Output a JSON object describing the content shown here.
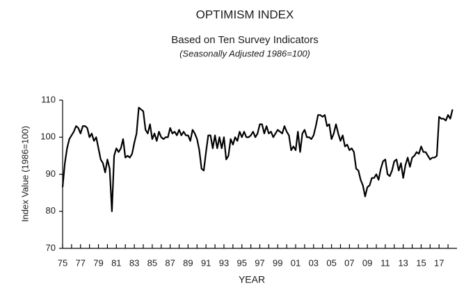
{
  "chart_data": {
    "type": "line",
    "title": "OPTIMISM INDEX",
    "subtitle": "Based on Ten Survey Indicators",
    "note": "(Seasonally Adjusted 1986=100)",
    "y_label": "Index Value (1986=100)",
    "x_label": "YEAR",
    "color": "#000000",
    "xlim": [
      1975,
      2019
    ],
    "ylim": [
      70,
      110
    ],
    "yticks": [
      70,
      80,
      90,
      100,
      110
    ],
    "xticks": [
      {
        "value": 1975,
        "label": "75"
      },
      {
        "value": 1977,
        "label": "77"
      },
      {
        "value": 1979,
        "label": "79"
      },
      {
        "value": 1981,
        "label": "81"
      },
      {
        "value": 1983,
        "label": "83"
      },
      {
        "value": 1985,
        "label": "85"
      },
      {
        "value": 1987,
        "label": "87"
      },
      {
        "value": 1989,
        "label": "89"
      },
      {
        "value": 1991,
        "label": "91"
      },
      {
        "value": 1993,
        "label": "93"
      },
      {
        "value": 1995,
        "label": "95"
      },
      {
        "value": 1997,
        "label": "97"
      },
      {
        "value": 1999,
        "label": "99"
      },
      {
        "value": 2001,
        "label": "01"
      },
      {
        "value": 2003,
        "label": "03"
      },
      {
        "value": 2005,
        "label": "05"
      },
      {
        "value": 2007,
        "label": "07"
      },
      {
        "value": 2009,
        "label": "09"
      },
      {
        "value": 2011,
        "label": "11"
      },
      {
        "value": 2013,
        "label": "13"
      },
      {
        "value": 2015,
        "label": "15"
      },
      {
        "value": 2017,
        "label": "17"
      }
    ],
    "xminorticks": [
      1976,
      1978,
      1980,
      1982,
      1984,
      1986,
      1988,
      1990,
      1992,
      1994,
      1996,
      1998,
      2000,
      2002,
      2004,
      2006,
      2008,
      2010,
      2012,
      2014,
      2016,
      2018
    ],
    "x": [
      1975,
      1975.25,
      1975.5,
      1975.75,
      1976,
      1976.25,
      1976.5,
      1976.75,
      1977,
      1977.25,
      1977.5,
      1977.75,
      1978,
      1978.25,
      1978.5,
      1978.75,
      1979,
      1979.25,
      1979.5,
      1979.75,
      1980,
      1980.25,
      1980.5,
      1980.75,
      1981,
      1981.25,
      1981.5,
      1981.75,
      1982,
      1982.25,
      1982.5,
      1982.75,
      1983,
      1983.25,
      1983.5,
      1983.75,
      1984,
      1984.25,
      1984.5,
      1984.75,
      1985,
      1985.25,
      1985.5,
      1985.75,
      1986,
      1986.25,
      1986.5,
      1986.75,
      1987,
      1987.25,
      1987.5,
      1987.75,
      1988,
      1988.25,
      1988.5,
      1988.75,
      1989,
      1989.25,
      1989.5,
      1989.75,
      1990,
      1990.25,
      1990.5,
      1990.75,
      1991,
      1991.25,
      1991.5,
      1991.75,
      1992,
      1992.25,
      1992.5,
      1992.75,
      1993,
      1993.25,
      1993.5,
      1993.75,
      1994,
      1994.25,
      1994.5,
      1994.75,
      1995,
      1995.25,
      1995.5,
      1995.75,
      1996,
      1996.25,
      1996.5,
      1996.75,
      1997,
      1997.25,
      1997.5,
      1997.75,
      1998,
      1998.25,
      1998.5,
      1998.75,
      1999,
      1999.25,
      1999.5,
      1999.75,
      2000,
      2000.25,
      2000.5,
      2000.75,
      2001,
      2001.25,
      2001.5,
      2001.75,
      2002,
      2002.25,
      2002.5,
      2002.75,
      2003,
      2003.25,
      2003.5,
      2003.75,
      2004,
      2004.25,
      2004.5,
      2004.75,
      2005,
      2005.25,
      2005.5,
      2005.75,
      2006,
      2006.25,
      2006.5,
      2006.75,
      2007,
      2007.25,
      2007.5,
      2007.75,
      2008,
      2008.25,
      2008.5,
      2008.75,
      2009,
      2009.25,
      2009.5,
      2009.75,
      2010,
      2010.25,
      2010.5,
      2010.75,
      2011,
      2011.25,
      2011.5,
      2011.75,
      2012,
      2012.25,
      2012.5,
      2012.75,
      2013,
      2013.25,
      2013.5,
      2013.75,
      2014,
      2014.25,
      2014.5,
      2014.75,
      2015,
      2015.25,
      2015.5,
      2015.75,
      2016,
      2016.25,
      2016.5,
      2016.75,
      2017,
      2017.25,
      2017.5,
      2017.75,
      2018,
      2018.25,
      2018.5
    ],
    "values": [
      86.5,
      93,
      97,
      99.5,
      100.5,
      101.5,
      103,
      102.5,
      101,
      103,
      103,
      102.5,
      100,
      101,
      99,
      100,
      97,
      94,
      93,
      90.5,
      94,
      91.5,
      80,
      95,
      97,
      96,
      97,
      99.5,
      94.5,
      95,
      94.5,
      95.5,
      98.5,
      101,
      108,
      107.5,
      107,
      102,
      101,
      103.5,
      99.5,
      101,
      99,
      101.5,
      100,
      99.5,
      100,
      100,
      102.5,
      101,
      101.5,
      100.5,
      102,
      100.5,
      101.5,
      100.5,
      100.5,
      99,
      102,
      101,
      99.5,
      96.5,
      91.5,
      91,
      96,
      100.5,
      100.5,
      97,
      100.5,
      97,
      100,
      97,
      100,
      94,
      95,
      99.5,
      98,
      100,
      99,
      101.5,
      100,
      101.5,
      100,
      100,
      100.5,
      101.5,
      100,
      101,
      103.5,
      103.5,
      101,
      103,
      101,
      101.5,
      100,
      101,
      102,
      101.5,
      101,
      103,
      101.5,
      100.5,
      96.5,
      97.5,
      96.5,
      101.5,
      96,
      101,
      102,
      100,
      100,
      99.5,
      100.5,
      103,
      106,
      106,
      105.5,
      106,
      103,
      103.5,
      99.5,
      101,
      103.5,
      101,
      99,
      100.5,
      97.5,
      98,
      96.5,
      97,
      96,
      91.5,
      91,
      88.5,
      87,
      84,
      86.5,
      87,
      89,
      89,
      90,
      88.5,
      91.5,
      93.5,
      94,
      90,
      89.5,
      91,
      93.5,
      94,
      91,
      93,
      89,
      92.5,
      94.5,
      92,
      94.5,
      95,
      96,
      95.5,
      97.5,
      96,
      96,
      95,
      94,
      94.5,
      94.5,
      95,
      105.5,
      105,
      105,
      104.5,
      106,
      105,
      107.5
    ]
  }
}
